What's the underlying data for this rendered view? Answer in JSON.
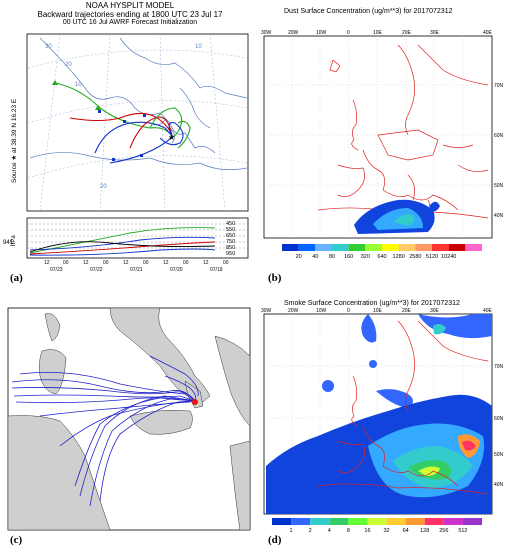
{
  "panels": {
    "a": {
      "label": "(a)",
      "title_line1": "NOAA HYSPLIT MODEL",
      "title_line2": "Backward trajectories ending at 1800 UTC 23 Jul 17",
      "title_line3": "00 UTC 16 Jul   AWRF  Forecast Initialization",
      "source_label": "Source ★ at  38.39 N  16.23 E",
      "map_labels": [
        "30",
        "20",
        "10",
        "10",
        "20"
      ],
      "hpa_label": "hPa",
      "pressure_ticks": [
        "450",
        "550",
        "650",
        "750",
        "850",
        "950"
      ],
      "left_value": "941",
      "date_ticks": [
        "07/23",
        "07/22",
        "07/21",
        "07/20",
        "07/19"
      ],
      "hour_ticks": [
        "12",
        "00",
        "12",
        "00",
        "12",
        "00",
        "12",
        "00",
        "12",
        "00"
      ]
    },
    "b": {
      "label": "(b)",
      "title": "Dust Surface Concentration (ug/m**3) for 2017072312",
      "lon_labels": [
        "30W",
        "20W",
        "10W",
        "0",
        "10E",
        "20E",
        "30E",
        "40E"
      ],
      "lat_labels": [
        "70N",
        "60N",
        "50N",
        "40N"
      ],
      "legend_labels": [
        "20",
        "40",
        "80",
        "160",
        "320",
        "640",
        "1280",
        "2580",
        "5120",
        "10240"
      ],
      "legend_colors": [
        "#0033cc",
        "#0066ff",
        "#66b3ff",
        "#33cccc",
        "#33cc33",
        "#99ff33",
        "#ffff00",
        "#ffcc66",
        "#ff9966",
        "#ff3333",
        "#cc0000",
        "#ff66cc"
      ]
    },
    "c": {
      "label": "(c)"
    },
    "d": {
      "label": "(d)",
      "title": "Smoke Surface Concentration (ug/m**3) for 2017072312",
      "lon_labels": [
        "30W",
        "20W",
        "10W",
        "0",
        "10E",
        "20E",
        "30E",
        "40E"
      ],
      "lat_labels": [
        "70N",
        "60N",
        "50N",
        "40N"
      ],
      "legend_labels": [
        "1",
        "2",
        "4",
        "8",
        "16",
        "32",
        "64",
        "128",
        "256",
        "512"
      ],
      "legend_colors": [
        "#0033cc",
        "#3366ff",
        "#33cccc",
        "#33cc66",
        "#66ff33",
        "#ccff33",
        "#ffcc33",
        "#ff9933",
        "#ff3366",
        "#cc33cc",
        "#9933cc"
      ]
    }
  }
}
